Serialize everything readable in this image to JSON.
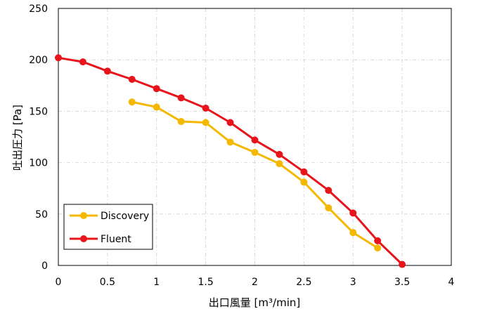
{
  "chart_data": {
    "type": "line",
    "title": "",
    "xlabel": "出口風量 [m³/min]",
    "ylabel": "吐出圧力 [Pa]",
    "xlim": [
      0,
      4
    ],
    "ylim": [
      0,
      250
    ],
    "xticks": [
      0,
      0.5,
      1,
      1.5,
      2,
      2.5,
      3,
      3.5,
      4
    ],
    "xtick_labels": [
      "0",
      "0.5",
      "1",
      "1.5",
      "2",
      "2.5",
      "3",
      "3.5",
      "4"
    ],
    "yticks": [
      0,
      50,
      100,
      150,
      200,
      250
    ],
    "ytick_labels": [
      "0",
      "50",
      "100",
      "150",
      "200",
      "250"
    ],
    "grid": true,
    "legend_position": "bottom-left",
    "series": [
      {
        "name": "Discovery",
        "color": "#F5B800",
        "x": [
          0.75,
          1,
          1.25,
          1.5,
          1.75,
          2,
          2.25,
          2.5,
          2.75,
          3,
          3.25
        ],
        "y": [
          159,
          154,
          140,
          139,
          120,
          110,
          99,
          81,
          56,
          32,
          17
        ]
      },
      {
        "name": "Fluent",
        "color": "#E8141B",
        "x": [
          0,
          0.25,
          0.5,
          0.75,
          1,
          1.25,
          1.5,
          1.75,
          2,
          2.25,
          2.5,
          2.75,
          3,
          3.25,
          3.5
        ],
        "y": [
          202,
          198,
          189,
          181,
          172,
          163,
          153,
          139,
          122,
          108,
          91,
          73,
          51,
          24,
          1
        ]
      }
    ]
  }
}
